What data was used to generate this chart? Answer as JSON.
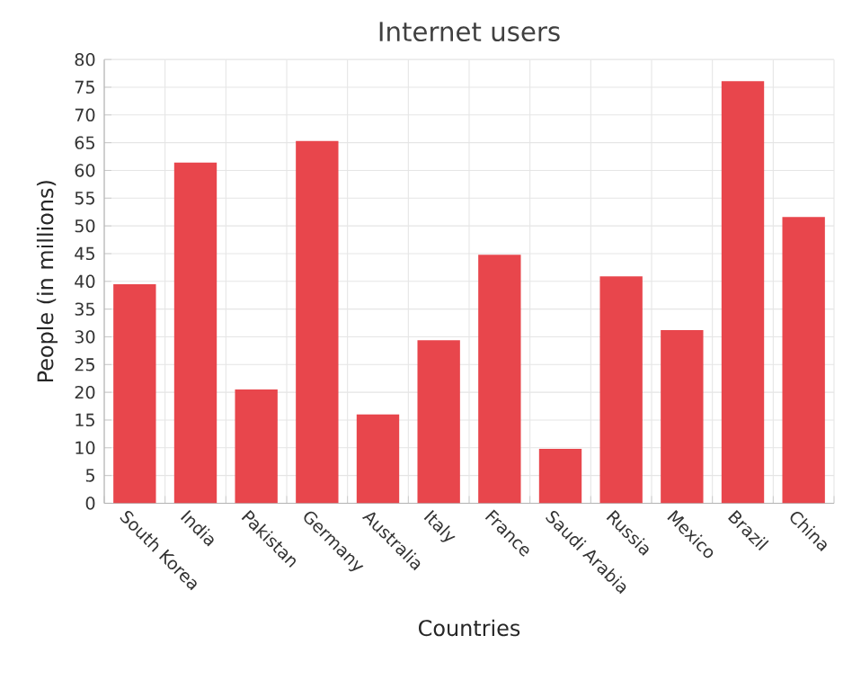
{
  "chart_data": {
    "type": "bar",
    "title": "Internet users",
    "xlabel": "Countries",
    "ylabel": "People (in millions)",
    "categories": [
      "South Korea",
      "India",
      "Pakistan",
      "Germany",
      "Australia",
      "Italy",
      "France",
      "Saudi Arabia",
      "Russia",
      "Mexico",
      "Brazil",
      "China"
    ],
    "values": [
      39.5,
      61.4,
      20.5,
      65.3,
      16.0,
      29.4,
      44.8,
      9.8,
      40.9,
      31.2,
      76.1,
      51.6
    ],
    "color": "#e8464c",
    "ylim": [
      0,
      80
    ],
    "yticks": [
      0,
      5,
      10,
      15,
      20,
      25,
      30,
      35,
      40,
      45,
      50,
      55,
      60,
      65,
      70,
      75,
      80
    ],
    "grid": true
  }
}
